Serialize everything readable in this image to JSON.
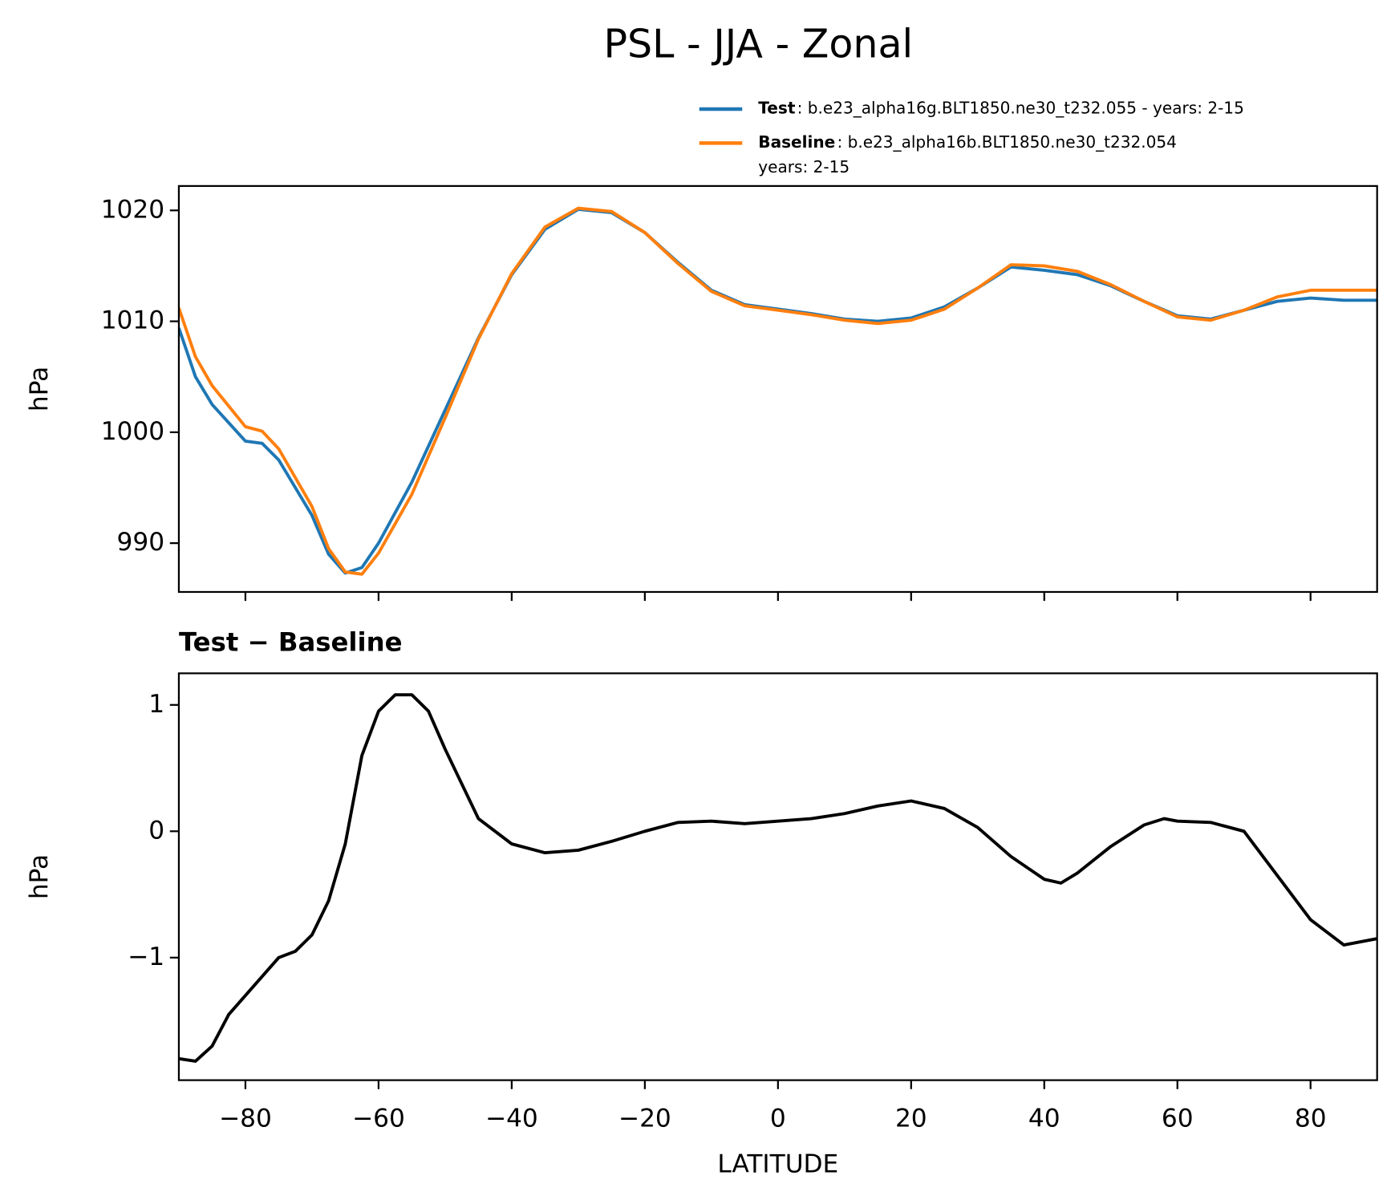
{
  "chart_data": [
    {
      "type": "line",
      "title": "PSL - JJA - Zonal",
      "ylabel": "hPa",
      "xlim": [
        -90,
        90
      ],
      "xticks": [
        -80,
        -60,
        -40,
        -20,
        0,
        20,
        40,
        60,
        80
      ],
      "ylim": [
        985.6,
        1022.2
      ],
      "yticks": [
        990,
        1000,
        1010,
        1020
      ],
      "x": [
        -90,
        -87.5,
        -85,
        -80,
        -77.5,
        -75,
        -70,
        -67.5,
        -65,
        -62.5,
        -60,
        -55,
        -50,
        -45,
        -40,
        -35,
        -30,
        -25,
        -20,
        -15,
        -10,
        -5,
        0,
        5,
        10,
        15,
        20,
        25,
        30,
        35,
        40,
        45,
        50,
        55,
        60,
        65,
        70,
        75,
        80,
        85,
        90
      ],
      "legend": "upper right",
      "series": [
        {
          "name": "Test",
          "color": "#1f77b4",
          "label_lines": [
            ": b.e23_alpha16g.BLT1850.ne30_t232.055 - years: 2-15"
          ],
          "values": [
            1009.4,
            1005,
            1002.5,
            999.2,
            999,
            997.5,
            992.5,
            989,
            987.3,
            987.8,
            990,
            995.5,
            1002,
            1008.5,
            1014.2,
            1018.3,
            1020.1,
            1019.8,
            1018,
            1015.3,
            1012.8,
            1011.5,
            1011.1,
            1010.7,
            1010.2,
            1010.0,
            1010.3,
            1011.3,
            1013,
            1014.9,
            1014.6,
            1014.2,
            1013.2,
            1011.8,
            1010.5,
            1010.2,
            1011,
            1011.8,
            1012.1,
            1011.9,
            1011.9
          ]
        },
        {
          "name": "Baseline",
          "color": "#ff7f0e",
          "label_lines": [
            ": b.e23_alpha16b.BLT1850.ne30_t232.054",
            "years: 2-15"
          ],
          "values": [
            1011.2,
            1006.8,
            1004.2,
            1000.5,
            1000.1,
            998.5,
            993.3,
            989.5,
            987.4,
            987.2,
            989.1,
            994.4,
            1001.3,
            1008.4,
            1014.3,
            1018.5,
            1020.2,
            1019.9,
            1018,
            1015.2,
            1012.7,
            1011.4,
            1011.0,
            1010.6,
            1010.1,
            1009.8,
            1010.1,
            1011.1,
            1013,
            1015.1,
            1015.0,
            1014.5,
            1013.3,
            1011.8,
            1010.4,
            1010.1,
            1011,
            1012.2,
            1012.8,
            1012.8,
            1012.8
          ]
        }
      ]
    },
    {
      "type": "line",
      "title": "Test − Baseline",
      "ylabel": "hPa",
      "xlabel": "LATITUDE",
      "xlim": [
        -90,
        90
      ],
      "xticks": [
        {
          "value": -80,
          "label": "−80"
        },
        {
          "value": -60,
          "label": "−60"
        },
        {
          "value": -40,
          "label": "−40"
        },
        {
          "value": -20,
          "label": "−20"
        },
        0,
        20,
        40,
        60,
        80
      ],
      "ylim": [
        -1.97,
        1.25
      ],
      "yticks": [
        {
          "value": -1,
          "label": "−1"
        },
        0,
        1
      ],
      "x": [
        -90,
        -87.5,
        -85,
        -82.5,
        -80,
        -77.5,
        -75,
        -72.5,
        -70,
        -67.5,
        -65,
        -62.5,
        -60,
        -57.5,
        -55,
        -52.5,
        -50,
        -45,
        -40,
        -35,
        -30,
        -25,
        -20,
        -15,
        -10,
        -5,
        0,
        5,
        10,
        15,
        20,
        25,
        30,
        35,
        40,
        42.5,
        45,
        50,
        55,
        58,
        60,
        65,
        70,
        75,
        80,
        85,
        90
      ],
      "series": [
        {
          "color": "#000000",
          "values": [
            -1.8,
            -1.82,
            -1.7,
            -1.45,
            -1.3,
            -1.15,
            -1.0,
            -0.95,
            -0.82,
            -0.55,
            -0.1,
            0.6,
            0.95,
            1.08,
            1.08,
            0.95,
            0.65,
            0.1,
            -0.1,
            -0.17,
            -0.15,
            -0.08,
            0.0,
            0.07,
            0.08,
            0.06,
            0.08,
            0.1,
            0.14,
            0.2,
            0.24,
            0.18,
            0.03,
            -0.2,
            -0.38,
            -0.41,
            -0.33,
            -0.12,
            0.05,
            0.1,
            0.08,
            0.07,
            0.0,
            -0.35,
            -0.7,
            -0.9,
            -0.85
          ]
        }
      ]
    }
  ]
}
